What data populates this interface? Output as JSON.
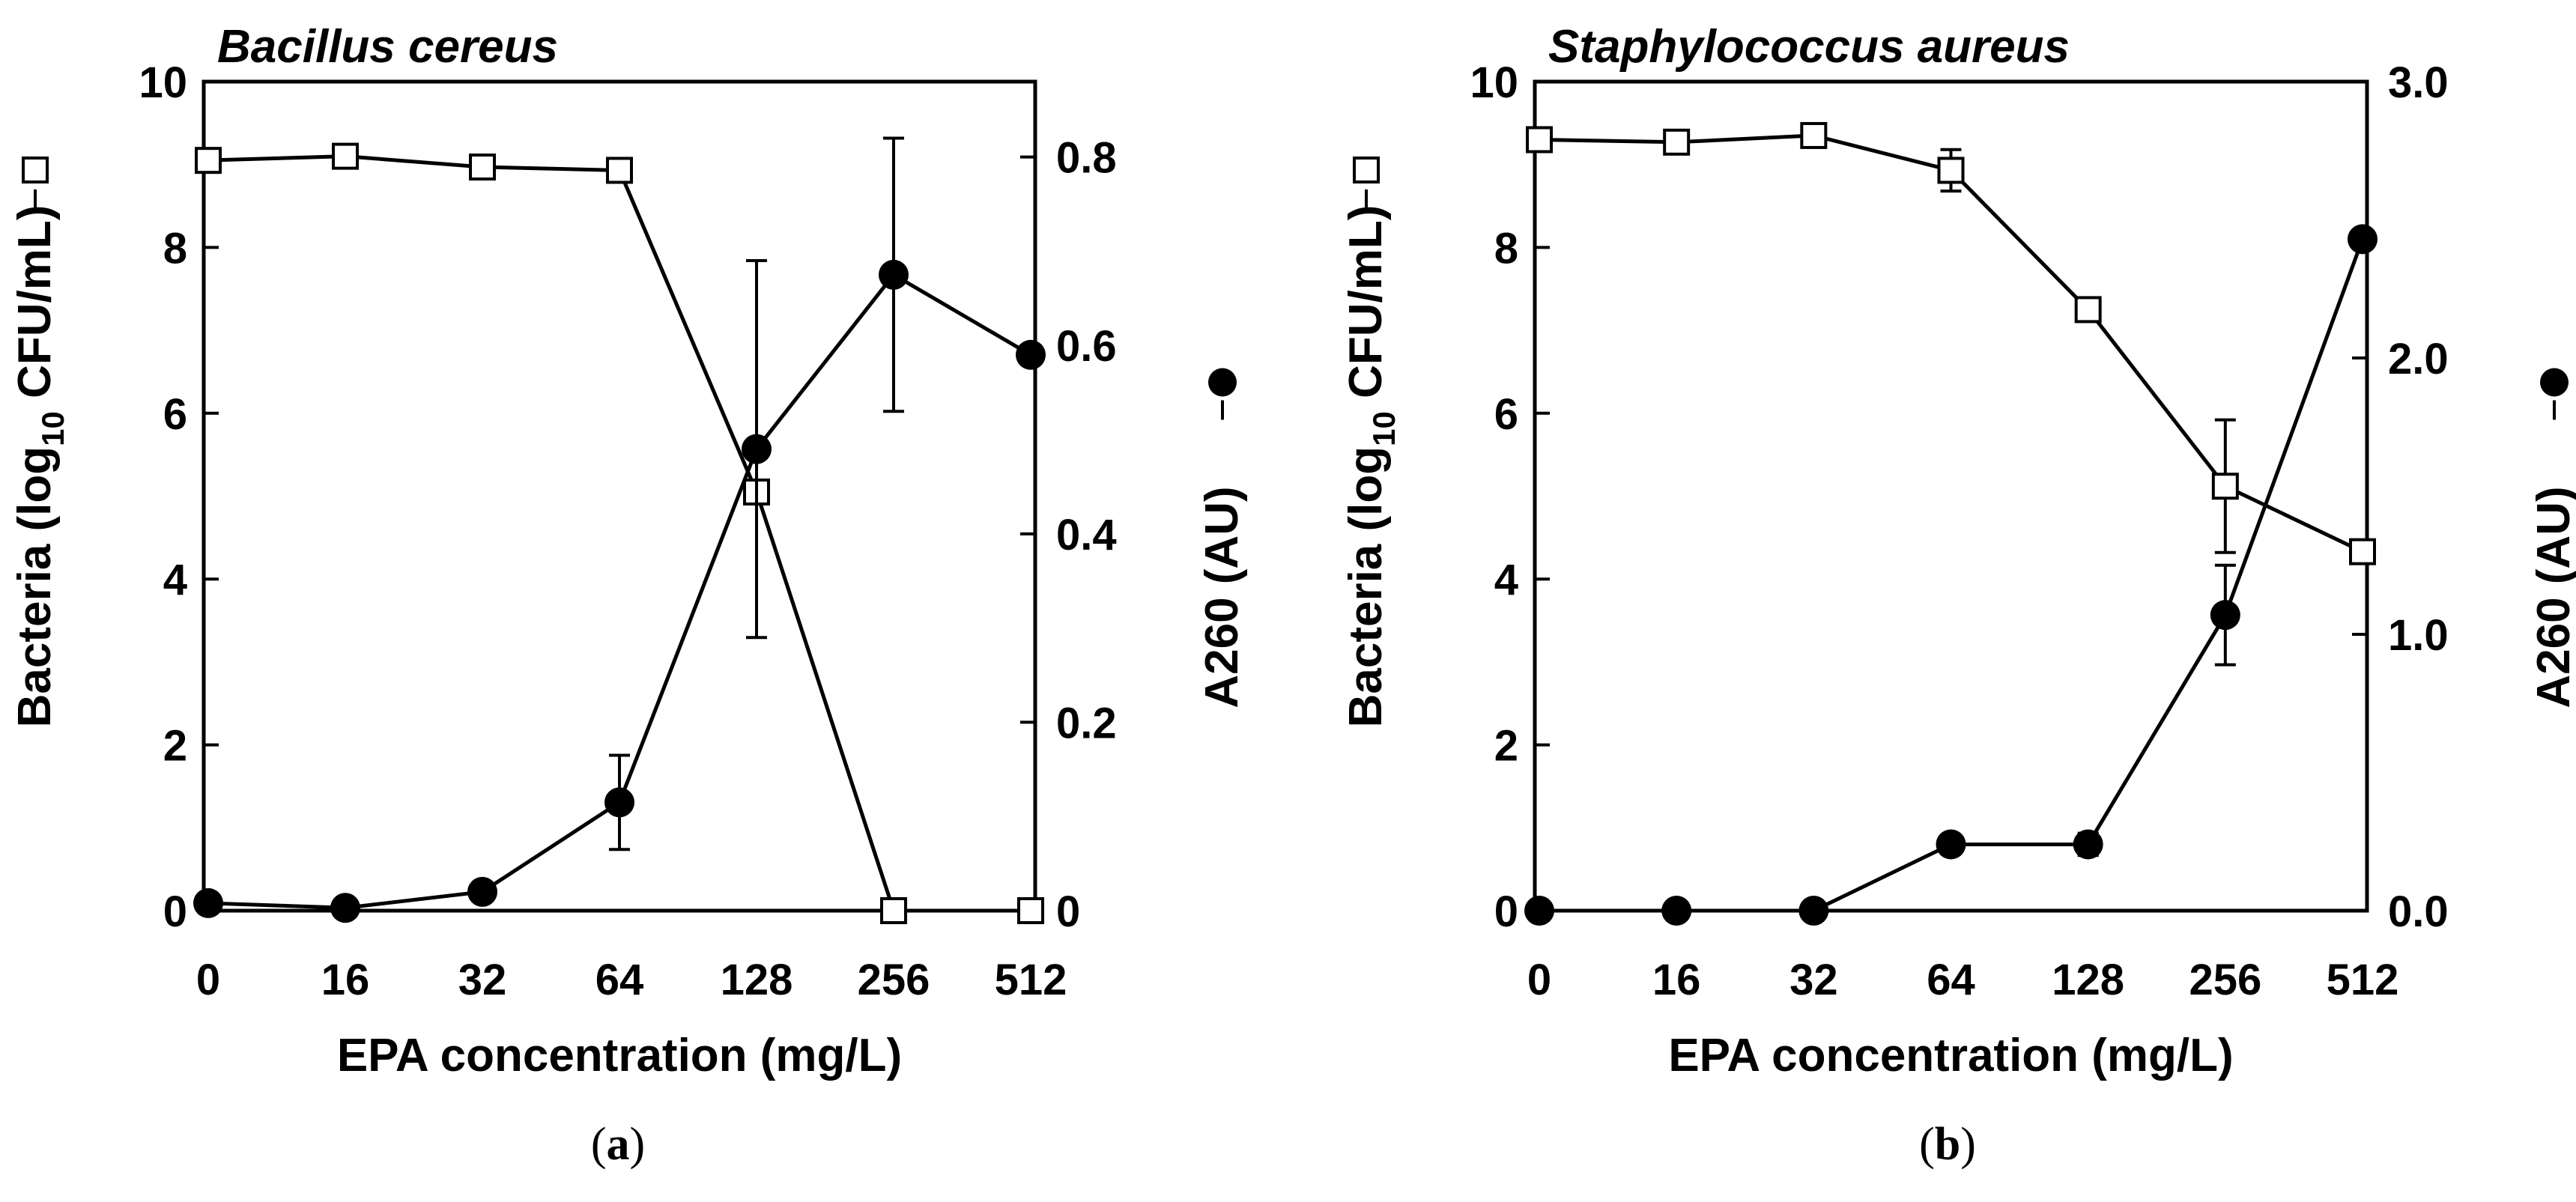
{
  "chart_data": [
    {
      "type": "line",
      "panel_label": "a",
      "title": "Bacillus cereus",
      "xlabel": "EPA concentration (mg/L)",
      "ylabel_left": {
        "pre": "Bacteria (log",
        "sub": "10",
        "post": " CFU/mL)"
      },
      "ylabel_right": "A260 (AU)",
      "categories": [
        "0",
        "16",
        "32",
        "64",
        "128",
        "256",
        "512"
      ],
      "ylim_left": [
        0,
        10
      ],
      "yticks_left": [
        0,
        2,
        4,
        6,
        8,
        10
      ],
      "yticks_left_labels": [
        "0",
        "2",
        "4",
        "6",
        "8",
        "10"
      ],
      "ylim_right": [
        0,
        0.88
      ],
      "yticks_right": [
        0,
        0.2,
        0.4,
        0.6,
        0.8
      ],
      "yticks_right_labels": [
        "0",
        "0.2",
        "0.4",
        "0.6",
        "0.8"
      ],
      "series": [
        {
          "name": "Bacteria",
          "axis": "left",
          "marker": "open-square",
          "values": [
            9.05,
            9.1,
            8.97,
            8.93,
            5.05,
            0,
            0
          ],
          "errors": [
            0,
            0,
            0,
            0,
            0,
            0,
            0
          ]
        },
        {
          "name": "A260",
          "axis": "right",
          "marker": "filled-circle",
          "values": [
            0.008,
            0.003,
            0.02,
            0.115,
            0.49,
            0.675,
            0.59
          ],
          "errors": [
            0,
            0,
            0,
            0.05,
            0.2,
            0.145,
            0
          ]
        }
      ]
    },
    {
      "type": "line",
      "panel_label": "b",
      "title": "Staphylococcus aureus",
      "xlabel": "EPA concentration (mg/L)",
      "ylabel_left": {
        "pre": "Bacteria (log",
        "sub": "10",
        "post": " CFU/mL)"
      },
      "ylabel_right": "A260 (AU)",
      "categories": [
        "0",
        "16",
        "32",
        "64",
        "128",
        "256",
        "512"
      ],
      "ylim_left": [
        0,
        10
      ],
      "yticks_left": [
        0,
        2,
        4,
        6,
        8,
        10
      ],
      "yticks_left_labels": [
        "0",
        "2",
        "4",
        "6",
        "8",
        "10"
      ],
      "ylim_right": [
        0,
        3.0
      ],
      "yticks_right": [
        0,
        1.0,
        2.0,
        3.0
      ],
      "yticks_right_labels": [
        "0.0",
        "1.0",
        "2.0",
        "3.0"
      ],
      "series": [
        {
          "name": "Bacteria",
          "axis": "left",
          "marker": "open-square",
          "values": [
            9.3,
            9.27,
            9.35,
            8.93,
            7.25,
            5.12,
            4.33
          ],
          "errors": [
            0,
            0,
            0,
            0.25,
            0,
            0.8,
            0
          ]
        },
        {
          "name": "A260",
          "axis": "right",
          "marker": "filled-circle",
          "values": [
            0.0,
            0.0,
            0.0,
            0.24,
            0.24,
            1.07,
            2.43
          ],
          "errors": [
            0,
            0,
            0,
            0,
            0.04,
            0.18,
            0
          ]
        }
      ]
    }
  ]
}
